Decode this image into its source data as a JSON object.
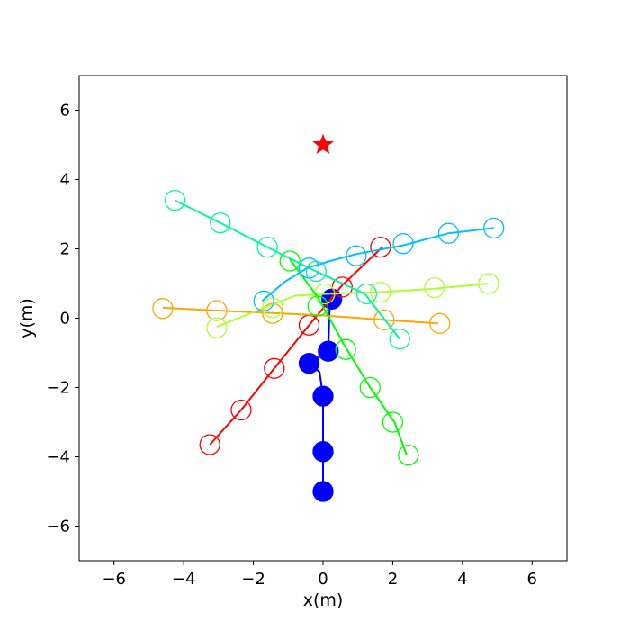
{
  "chart_data": {
    "type": "scatter",
    "title": "",
    "xlabel": "x(m)",
    "ylabel": "y(m)",
    "xlim": [
      -7,
      7
    ],
    "ylim": [
      -7,
      7
    ],
    "xticks": [
      -6,
      -4,
      -2,
      0,
      2,
      4,
      6
    ],
    "yticks": [
      -6,
      -4,
      -2,
      0,
      2,
      4,
      6
    ],
    "xtick_labels": [
      "−6",
      "−4",
      "−2",
      "0",
      "2",
      "4",
      "6"
    ],
    "ytick_labels": [
      "−6",
      "−4",
      "−2",
      "0",
      "2",
      "4",
      "6"
    ],
    "grid": false,
    "legend": false,
    "goal": {
      "x": 0,
      "y": 5,
      "marker": "star",
      "color": "#ff0000"
    },
    "series": [
      {
        "color": "#0000ff",
        "filled": true,
        "line": [
          [
            0,
            -5
          ],
          [
            0,
            -3.85
          ],
          [
            0,
            -2.25
          ],
          [
            -0.1,
            -1.55
          ],
          [
            -0.4,
            -1.3
          ],
          [
            0.15,
            -0.95
          ],
          [
            0.2,
            0.55
          ]
        ],
        "markers": [
          [
            0,
            -5
          ],
          [
            0,
            -3.85
          ],
          [
            0,
            -2.25
          ],
          [
            -0.4,
            -1.3
          ],
          [
            0.15,
            -0.95
          ],
          [
            0.25,
            0.55
          ]
        ]
      },
      {
        "color": "#ff0000",
        "filled": false,
        "line": [
          [
            -3.25,
            -3.65
          ],
          [
            -2.35,
            -2.65
          ],
          [
            -1.4,
            -1.45
          ],
          [
            -0.4,
            -0.2
          ],
          [
            0.55,
            0.95
          ],
          [
            1.7,
            2.05
          ]
        ],
        "markers": [
          [
            -3.25,
            -3.65
          ],
          [
            -2.35,
            -2.65
          ],
          [
            -1.4,
            -1.45
          ],
          [
            -0.4,
            -0.2
          ],
          [
            0.55,
            0.9
          ],
          [
            1.65,
            2.05
          ]
        ]
      },
      {
        "color": "#ffa500",
        "filled": false,
        "line": [
          [
            -4.6,
            0.3
          ],
          [
            -3.05,
            0.22
          ],
          [
            -1.45,
            0.15
          ],
          [
            0,
            0.08
          ],
          [
            1.75,
            -0.05
          ],
          [
            3.3,
            -0.15
          ]
        ],
        "markers": [
          [
            -4.6,
            0.28
          ],
          [
            -3.05,
            0.22
          ],
          [
            -1.45,
            0.14
          ],
          [
            1.75,
            -0.05
          ],
          [
            3.35,
            -0.15
          ]
        ]
      },
      {
        "color": "#adff2f",
        "filled": false,
        "line": [
          [
            -3.05,
            -0.25
          ],
          [
            -1.45,
            0.4
          ],
          [
            -0.8,
            0.65
          ],
          [
            0.05,
            0.7
          ],
          [
            1.6,
            0.75
          ],
          [
            3.2,
            0.85
          ],
          [
            4.75,
            1.0
          ]
        ],
        "markers": [
          [
            -3.05,
            -0.28
          ],
          [
            -1.45,
            0.3
          ],
          [
            0.05,
            0.7
          ],
          [
            1.65,
            0.75
          ],
          [
            3.2,
            0.88
          ],
          [
            4.75,
            1.0
          ]
        ]
      },
      {
        "color": "#00ff00",
        "filled": false,
        "line": [
          [
            -0.95,
            1.7
          ],
          [
            -0.15,
            0.6
          ],
          [
            0.65,
            -0.85
          ],
          [
            1.35,
            -2.0
          ],
          [
            2.05,
            -3.0
          ],
          [
            2.4,
            -3.95
          ]
        ],
        "markers": [
          [
            -0.95,
            1.65
          ],
          [
            -0.15,
            0.35
          ],
          [
            0.65,
            -0.9
          ],
          [
            1.35,
            -2.0
          ],
          [
            2.0,
            -3.0
          ],
          [
            2.45,
            -3.95
          ]
        ]
      },
      {
        "color": "#00fa9a",
        "filled": false,
        "line": [
          [
            -4.25,
            3.4
          ],
          [
            -2.95,
            2.75
          ],
          [
            -1.6,
            2.05
          ],
          [
            -0.2,
            1.35
          ],
          [
            1.2,
            0.7
          ],
          [
            2.2,
            -0.6
          ]
        ],
        "markers": [
          [
            -4.25,
            3.4
          ],
          [
            -2.95,
            2.75
          ],
          [
            -1.6,
            2.05
          ],
          [
            -0.2,
            1.35
          ],
          [
            1.25,
            0.7
          ],
          [
            2.2,
            -0.6
          ]
        ]
      },
      {
        "color": "#00bfff",
        "filled": false,
        "line": [
          [
            -1.75,
            0.5
          ],
          [
            -1.1,
            1.05
          ],
          [
            -0.45,
            1.45
          ],
          [
            0.2,
            1.65
          ],
          [
            0.95,
            1.85
          ],
          [
            2.3,
            2.1
          ],
          [
            3.6,
            2.45
          ],
          [
            4.9,
            2.6
          ]
        ],
        "markers": [
          [
            -1.7,
            0.5
          ],
          [
            -0.4,
            1.45
          ],
          [
            0.95,
            1.8
          ],
          [
            2.3,
            2.15
          ],
          [
            3.6,
            2.45
          ],
          [
            4.9,
            2.6
          ]
        ]
      }
    ]
  }
}
